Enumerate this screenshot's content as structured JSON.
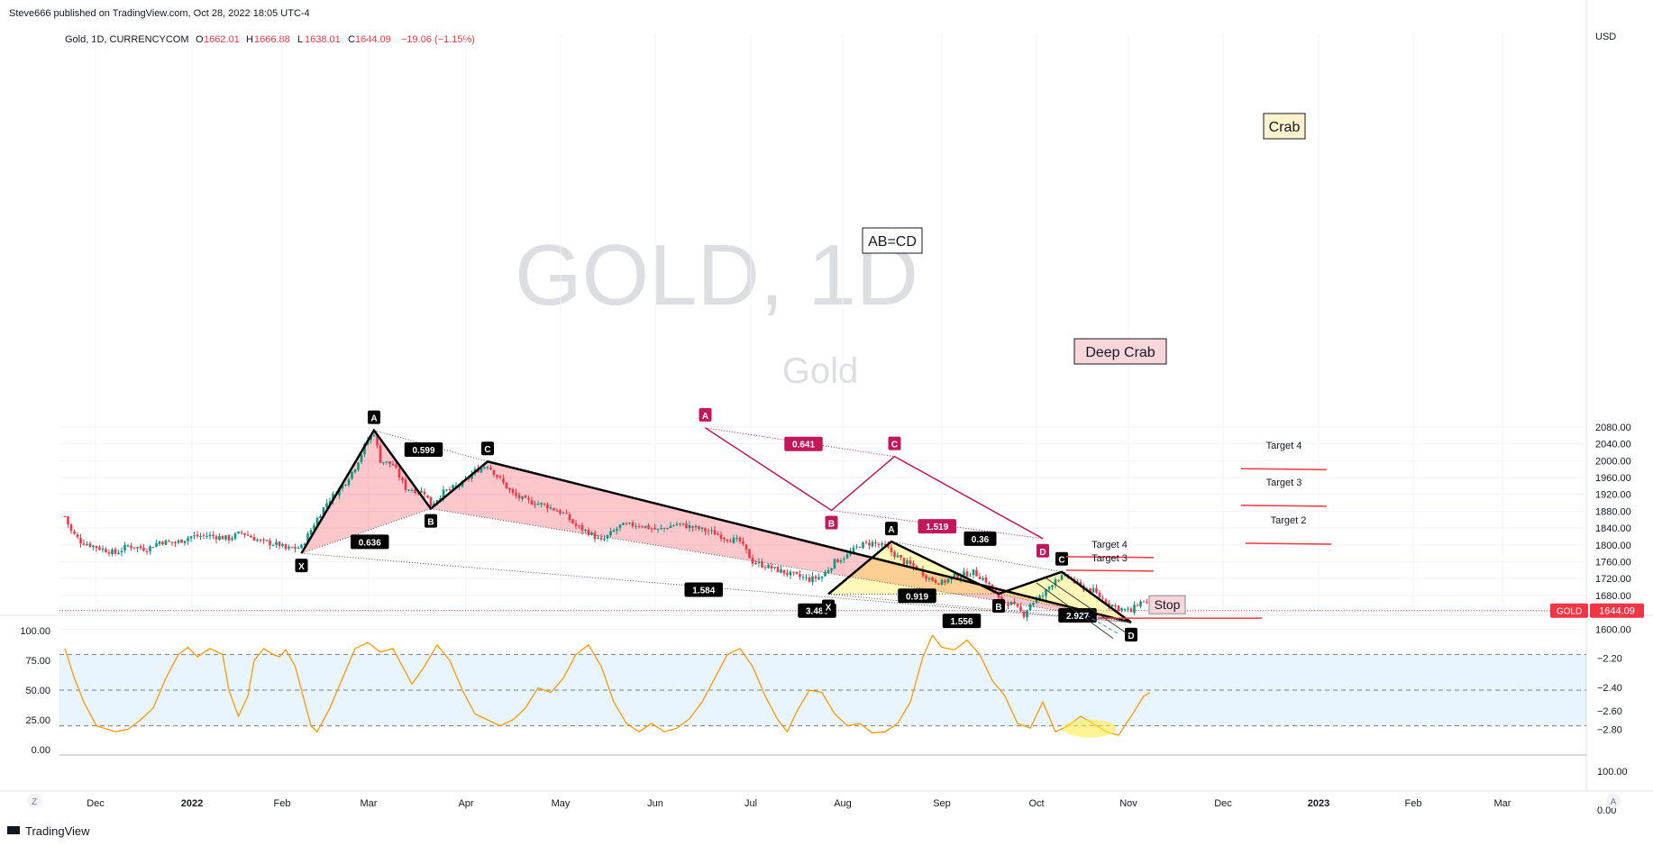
{
  "header": {
    "publisher": "Steve666 published on TradingView.com, Oct 28, 2022 18:05 UTC-4",
    "symbol": "Gold, 1D, CURRENCYCOM",
    "o_label": "O",
    "o": "1662.01",
    "h_label": "H",
    "h": "1666.88",
    "l_label": "L",
    "l": "1638.01",
    "c_label": "C",
    "c": "1644.09",
    "change": "−19.06 (−1.15%)"
  },
  "watermark": {
    "big": "GOLD, 1D",
    "small": "Gold"
  },
  "footer": {
    "brand": "TradingView",
    "left_btn": "Z",
    "right_btn": "A"
  },
  "colors": {
    "up": "#089981",
    "down": "#f23645",
    "osc": "#ff9800",
    "pattern_black": "#000000",
    "abcd": "#c2185b",
    "price_tag": "#f23645"
  },
  "chart_data": {
    "type": "candlestick",
    "currency_label": "USD",
    "ylim": [
      1575,
      2110
    ],
    "y_ticks": [
      "2080.00",
      "2040.00",
      "2000.00",
      "1960.00",
      "1920.00",
      "1880.00",
      "1840.00",
      "1800.00",
      "1760.00",
      "1720.00",
      "1680.00",
      "1640.00",
      "1600.00"
    ],
    "x_months": [
      "Dec",
      "2022",
      "Feb",
      "Mar",
      "Apr",
      "May",
      "Jun",
      "Jul",
      "Aug",
      "Sep",
      "Oct",
      "Nov",
      "Dec",
      "2023",
      "Feb",
      "Mar"
    ],
    "last_price": {
      "symbol": "GOLD",
      "value": "1644.09"
    },
    "path": [
      [
        0,
        1868
      ],
      [
        2,
        1832
      ],
      [
        5,
        1808
      ],
      [
        10,
        1795
      ],
      [
        16,
        1780
      ],
      [
        20,
        1798
      ],
      [
        26,
        1790
      ],
      [
        30,
        1808
      ],
      [
        35,
        1805
      ],
      [
        40,
        1820
      ],
      [
        46,
        1822
      ],
      [
        52,
        1815
      ],
      [
        56,
        1830
      ],
      [
        62,
        1808
      ],
      [
        68,
        1800
      ],
      [
        70,
        1790
      ],
      [
        75,
        1795
      ],
      [
        79,
        1850
      ],
      [
        83,
        1900
      ],
      [
        89,
        1950
      ],
      [
        92,
        1985
      ],
      [
        96,
        2050
      ],
      [
        98,
        2065
      ],
      [
        100,
        2000
      ],
      [
        104,
        1990
      ],
      [
        108,
        1935
      ],
      [
        114,
        1925
      ],
      [
        116,
        1895
      ],
      [
        120,
        1925
      ],
      [
        126,
        1945
      ],
      [
        130,
        1975
      ],
      [
        134,
        1990
      ],
      [
        138,
        1955
      ],
      [
        142,
        1920
      ],
      [
        146,
        1905
      ],
      [
        152,
        1895
      ],
      [
        158,
        1875
      ],
      [
        162,
        1845
      ],
      [
        166,
        1830
      ],
      [
        170,
        1808
      ],
      [
        176,
        1845
      ],
      [
        182,
        1848
      ],
      [
        188,
        1835
      ],
      [
        194,
        1850
      ],
      [
        200,
        1840
      ],
      [
        206,
        1828
      ],
      [
        210,
        1815
      ],
      [
        214,
        1808
      ],
      [
        218,
        1760
      ],
      [
        224,
        1745
      ],
      [
        230,
        1730
      ],
      [
        236,
        1718
      ],
      [
        240,
        1725
      ],
      [
        244,
        1760
      ],
      [
        248,
        1775
      ],
      [
        252,
        1800
      ],
      [
        256,
        1805
      ],
      [
        260,
        1795
      ],
      [
        266,
        1760
      ],
      [
        270,
        1745
      ],
      [
        274,
        1720
      ],
      [
        278,
        1710
      ],
      [
        282,
        1725
      ],
      [
        288,
        1735
      ],
      [
        292,
        1715
      ],
      [
        296,
        1670
      ],
      [
        300,
        1660
      ],
      [
        304,
        1635
      ],
      [
        306,
        1660
      ],
      [
        310,
        1680
      ],
      [
        314,
        1720
      ],
      [
        318,
        1725
      ],
      [
        322,
        1700
      ],
      [
        326,
        1690
      ],
      [
        330,
        1665
      ],
      [
        334,
        1650
      ],
      [
        338,
        1642
      ],
      [
        340,
        1660
      ],
      [
        342,
        1668
      ],
      [
        344,
        1655
      ],
      [
        346,
        1644
      ]
    ],
    "osc_axis_left": [
      "100.00",
      "75.00",
      "50.00",
      "25.00",
      "0.00"
    ],
    "osc_axis_right": [
      "−2.20",
      "−2.40",
      "−2.60",
      "−2.80",
      "100.00",
      "0.00"
    ],
    "osc_levels": [
      80,
      50,
      20
    ],
    "osc_path": [
      [
        0,
        85
      ],
      [
        3,
        60
      ],
      [
        6,
        40
      ],
      [
        10,
        20
      ],
      [
        16,
        15
      ],
      [
        20,
        17
      ],
      [
        24,
        25
      ],
      [
        28,
        35
      ],
      [
        32,
        60
      ],
      [
        36,
        80
      ],
      [
        39,
        86
      ],
      [
        42,
        78
      ],
      [
        46,
        85
      ],
      [
        50,
        80
      ],
      [
        52,
        50
      ],
      [
        55,
        28
      ],
      [
        58,
        45
      ],
      [
        60,
        75
      ],
      [
        63,
        85
      ],
      [
        66,
        80
      ],
      [
        68,
        78
      ],
      [
        70,
        84
      ],
      [
        73,
        70
      ],
      [
        75,
        50
      ],
      [
        78,
        20
      ],
      [
        80,
        15
      ],
      [
        84,
        35
      ],
      [
        88,
        60
      ],
      [
        92,
        85
      ],
      [
        96,
        90
      ],
      [
        100,
        82
      ],
      [
        104,
        85
      ],
      [
        107,
        70
      ],
      [
        110,
        55
      ],
      [
        114,
        70
      ],
      [
        118,
        88
      ],
      [
        122,
        75
      ],
      [
        126,
        50
      ],
      [
        130,
        30
      ],
      [
        134,
        25
      ],
      [
        138,
        20
      ],
      [
        142,
        25
      ],
      [
        146,
        35
      ],
      [
        150,
        52
      ],
      [
        154,
        48
      ],
      [
        158,
        60
      ],
      [
        162,
        80
      ],
      [
        166,
        88
      ],
      [
        170,
        70
      ],
      [
        174,
        40
      ],
      [
        178,
        22
      ],
      [
        182,
        15
      ],
      [
        186,
        22
      ],
      [
        190,
        15
      ],
      [
        194,
        18
      ],
      [
        198,
        26
      ],
      [
        202,
        40
      ],
      [
        206,
        60
      ],
      [
        210,
        80
      ],
      [
        214,
        85
      ],
      [
        218,
        70
      ],
      [
        222,
        45
      ],
      [
        226,
        25
      ],
      [
        229,
        15
      ],
      [
        232,
        32
      ],
      [
        236,
        50
      ],
      [
        240,
        48
      ],
      [
        244,
        30
      ],
      [
        248,
        20
      ],
      [
        252,
        22
      ],
      [
        256,
        14
      ],
      [
        260,
        15
      ],
      [
        264,
        22
      ],
      [
        268,
        40
      ],
      [
        272,
        78
      ],
      [
        275,
        96
      ],
      [
        278,
        86
      ],
      [
        282,
        84
      ],
      [
        286,
        92
      ],
      [
        290,
        80
      ],
      [
        294,
        58
      ],
      [
        298,
        45
      ],
      [
        302,
        22
      ],
      [
        306,
        18
      ],
      [
        310,
        40
      ],
      [
        314,
        15
      ],
      [
        318,
        20
      ],
      [
        322,
        28
      ],
      [
        326,
        22
      ],
      [
        330,
        15
      ],
      [
        334,
        12
      ],
      [
        338,
        28
      ],
      [
        342,
        45
      ],
      [
        344,
        48
      ]
    ],
    "harmonics_big": {
      "points": [
        {
          "label": "X",
          "i": 75,
          "p": 1780
        },
        {
          "label": "A",
          "i": 98,
          "p": 2072
        },
        {
          "label": "B",
          "i": 116,
          "p": 1886
        },
        {
          "label": "C",
          "i": 134,
          "p": 1998
        },
        {
          "label": "D",
          "i": 338,
          "p": 1616
        }
      ],
      "ratios": {
        "xb": "0.636",
        "ac": "0.599",
        "bd": "3.486",
        "xd": "1.584"
      }
    },
    "harmonics_small": {
      "points": [
        {
          "label": "X",
          "i": 242,
          "p": 1683
        },
        {
          "label": "A",
          "i": 262,
          "p": 1808
        },
        {
          "label": "B",
          "i": 296,
          "p": 1684
        },
        {
          "label": "C",
          "i": 316,
          "p": 1736
        },
        {
          "label": "D",
          "i": 338,
          "p": 1616
        }
      ],
      "ratios": {
        "xb": "0.919",
        "ac": "0.36",
        "bd": "2.927",
        "xd": "1.556"
      }
    },
    "abcd": {
      "title": "AB=CD",
      "points": [
        {
          "label": "A",
          "i": 203,
          "p": 2078
        },
        {
          "label": "B",
          "i": 243,
          "p": 1882
        },
        {
          "label": "C",
          "i": 263,
          "p": 2010
        },
        {
          "label": "D",
          "i": 310,
          "p": 1815
        }
      ],
      "ratios": {
        "ac": "0.641",
        "bd": "1.519"
      }
    },
    "targets_crab": {
      "title": "Crab",
      "items": [
        {
          "label": "Target 4",
          "p": 1981
        },
        {
          "label": "Target 3",
          "p": 1894
        },
        {
          "label": "Target 2",
          "p": 1804
        }
      ]
    },
    "targets_deep": {
      "title": "Deep Crab",
      "items": [
        {
          "label": "Target 4",
          "p": 1772
        },
        {
          "label": "Target 3",
          "p": 1740
        }
      ]
    },
    "stop": {
      "label": "Stop",
      "p": 1626
    }
  }
}
